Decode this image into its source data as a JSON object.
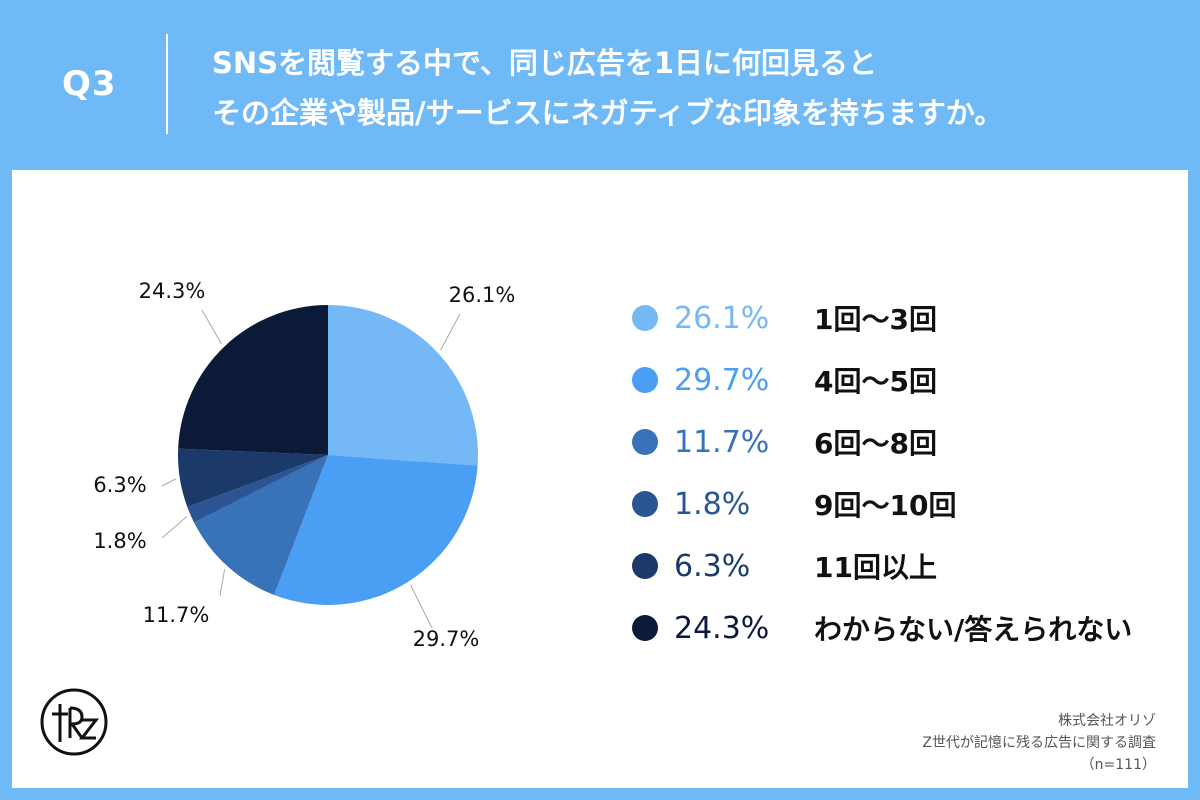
{
  "header": {
    "q_label": "Q3",
    "title_line1": "SNSを閲覧する中で、同じ広告を1日に何回見ると",
    "title_line2": "その企業や製品/サービスにネガティブな印象を持ちますか。"
  },
  "colors": {
    "background": "#6FB9F6",
    "panel": "#FFFFFF",
    "header_text": "#FFFFFF"
  },
  "chart_data": {
    "type": "pie",
    "title": "",
    "start_angle_deg": 0,
    "direction": "clockwise",
    "slices": [
      {
        "label": "1回〜3回",
        "value": 26.1,
        "display": "26.1%",
        "color": "#74B9F5"
      },
      {
        "label": "4回〜5回",
        "value": 29.7,
        "display": "29.7%",
        "color": "#4A9EF3"
      },
      {
        "label": "6回〜8回",
        "value": 11.7,
        "display": "11.7%",
        "color": "#3872B8"
      },
      {
        "label": "9回〜10回",
        "value": 1.8,
        "display": "1.8%",
        "color": "#2A5592"
      },
      {
        "label": "11回以上",
        "value": 6.3,
        "display": "6.3%",
        "color": "#1B3A6A"
      },
      {
        "label": "わからない/答えられない",
        "value": 24.3,
        "display": "24.3%",
        "color": "#0C1A3A"
      }
    ],
    "legend_position": "right"
  },
  "source": {
    "company": "株式会社オリゾ",
    "survey": "Z世代が記憶に残る広告に関する調査",
    "sample": "（n=111）"
  },
  "logo": {
    "icon": "orizo-logo-icon"
  }
}
